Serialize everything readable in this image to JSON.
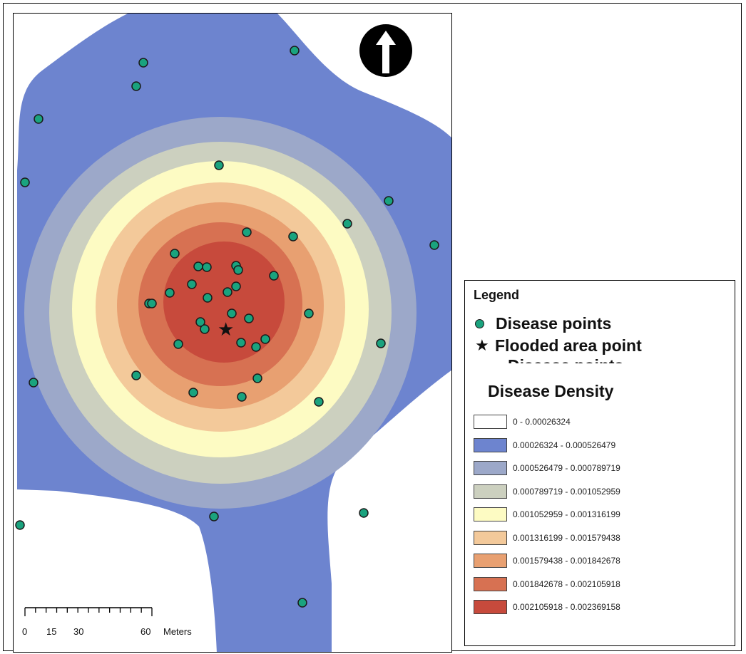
{
  "map": {
    "density_colors": [
      "#6d84cf",
      "#9ca8c9",
      "#ccd0bf",
      "#fdfbc3",
      "#f3c99a",
      "#e8a071",
      "#d77152",
      "#c74a3c"
    ],
    "point_color": "#1aa37e",
    "north_arrow_icon": "north-arrow-icon",
    "scale_bar": {
      "ticks": [
        "0",
        "15",
        "30",
        "60"
      ],
      "units": "Meters"
    }
  },
  "legend": {
    "title": "Legend",
    "symbols": [
      {
        "label": "Disease points",
        "icon": "green-dot-icon"
      },
      {
        "label": "Flooded area point",
        "icon": "star-icon"
      }
    ],
    "clipped_label": "Disease points",
    "heading": "Disease Density",
    "classes": [
      {
        "label": "0 - 0.00026324",
        "color": "#ffffff"
      },
      {
        "label": "0.00026324 - 0.000526479",
        "color": "#6d84cf"
      },
      {
        "label": "0.000526479 - 0.000789719",
        "color": "#9ca8c9"
      },
      {
        "label": "0.000789719 - 0.001052959",
        "color": "#ccd0bf"
      },
      {
        "label": "0.001052959 - 0.001316199",
        "color": "#fdfbc3"
      },
      {
        "label": "0.001316199 - 0.001579438",
        "color": "#f3c99a"
      },
      {
        "label": "0.001579438 - 0.001842678",
        "color": "#e8a071"
      },
      {
        "label": "0.001842678 - 0.002105918",
        "color": "#d77152"
      },
      {
        "label": "0.002105918 - 0.002369158",
        "color": "#c74a3c"
      }
    ]
  }
}
